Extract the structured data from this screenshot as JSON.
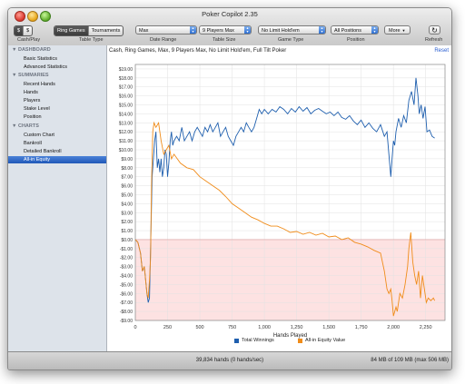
{
  "window": {
    "title": "Poker Copilot 2.35"
  },
  "toolbar": {
    "currency_buttons": [
      "$",
      "$"
    ],
    "game_tabs": [
      {
        "label": "Ring Games",
        "selected": true
      },
      {
        "label": "Tournaments",
        "selected": false
      }
    ],
    "date_range": "Max",
    "table_size": "9 Players Max",
    "game_type": "No Limit Hold'em",
    "position": "All Positions",
    "more": "More",
    "refresh_icon": "refresh-icon",
    "labels": {
      "cash_play": "Cash/Play",
      "table_type": "Table Type",
      "date_range": "Date Range",
      "table_size": "Table Size",
      "game_type": "Game Type",
      "position": "Position",
      "refresh": "Refresh"
    }
  },
  "sidebar": {
    "sections": [
      {
        "title": "DASHBOARD",
        "items": [
          "Basic Statistics",
          "Advanced Statistics"
        ]
      },
      {
        "title": "SUMMARIES",
        "items": [
          "Recent Hands",
          "Hands",
          "Players",
          "Stake Level",
          "Position"
        ]
      },
      {
        "title": "CHARTS",
        "items": [
          "Custom Chart",
          "Bankroll",
          "Detailed Bankroll",
          "All-in Equity"
        ]
      }
    ],
    "selected": "All-in Equity"
  },
  "main": {
    "heading": "Cash, Ring Games, Max, 9 Players Max, No Limit Hold'em, Full Tilt Poker",
    "reset": "Reset"
  },
  "chart_data": {
    "type": "line",
    "xlabel": "Hands Played",
    "ylabel": "",
    "xlim": [
      0,
      2400
    ],
    "ylim": [
      -9,
      19.5
    ],
    "x_ticks": [
      0,
      250,
      500,
      750,
      1000,
      1250,
      1500,
      1750,
      2000,
      2250
    ],
    "x_tick_labels": [
      "0",
      "250",
      "500",
      "750",
      "1,000",
      "1,250",
      "1,500",
      "1,750",
      "2,000",
      "2,250"
    ],
    "y_ticks": [
      19,
      18,
      17,
      16,
      15,
      14,
      13,
      12,
      11,
      10,
      9,
      8,
      7,
      6,
      5,
      4,
      3,
      2,
      1,
      0,
      -1,
      -2,
      -3,
      -4,
      -5,
      -6,
      -7,
      -8,
      -9
    ],
    "y_tick_labels": [
      "$19.00",
      "$18.00",
      "$17.00",
      "$16.00",
      "$15.00",
      "$14.00",
      "$13.00",
      "$12.00",
      "$11.00",
      "$10.00",
      "$9.00",
      "$8.00",
      "$7.00",
      "$6.00",
      "$5.00",
      "$4.00",
      "$3.00",
      "$2.00",
      "$1.00",
      "$0.00",
      "-$1.00",
      "-$2.00",
      "-$3.00",
      "-$4.00",
      "-$5.00",
      "-$6.00",
      "-$7.00",
      "-$8.00",
      "-$9.00"
    ],
    "negative_region_color": "#fde2e2",
    "series": [
      {
        "name": "Total Winnings",
        "color": "#1f5fae",
        "x": [
          0,
          20,
          40,
          55,
          70,
          90,
          100,
          110,
          120,
          130,
          140,
          150,
          160,
          170,
          180,
          190,
          200,
          210,
          220,
          230,
          240,
          250,
          260,
          270,
          280,
          290,
          300,
          320,
          340,
          360,
          380,
          400,
          420,
          440,
          460,
          480,
          500,
          520,
          540,
          560,
          580,
          600,
          620,
          640,
          660,
          680,
          700,
          720,
          740,
          760,
          780,
          800,
          820,
          840,
          860,
          880,
          900,
          920,
          940,
          960,
          980,
          1000,
          1030,
          1060,
          1090,
          1120,
          1150,
          1180,
          1210,
          1240,
          1270,
          1300,
          1330,
          1360,
          1390,
          1420,
          1450,
          1480,
          1510,
          1540,
          1570,
          1600,
          1630,
          1660,
          1690,
          1720,
          1750,
          1780,
          1810,
          1840,
          1870,
          1900,
          1930,
          1950,
          1965,
          1980,
          1990,
          2000,
          2010,
          2020,
          2040,
          2060,
          2080,
          2100,
          2120,
          2140,
          2160,
          2175,
          2190,
          2200,
          2215,
          2230,
          2245,
          2260,
          2280,
          2300,
          2320
        ],
        "y": [
          0,
          -0.3,
          -1.5,
          -3.5,
          -3.0,
          -6.0,
          -7.0,
          -6.5,
          0.0,
          7.0,
          9.0,
          11.0,
          12.0,
          8.0,
          9.0,
          7.5,
          9.0,
          7.0,
          8.0,
          10.0,
          9.5,
          7.0,
          8.5,
          11.0,
          12.0,
          10.5,
          11.0,
          11.5,
          11.0,
          12.5,
          11.0,
          11.5,
          12.0,
          11.0,
          12.0,
          12.5,
          12.0,
          11.5,
          12.5,
          12.0,
          12.8,
          12.0,
          12.5,
          13.0,
          11.5,
          12.0,
          12.5,
          11.5,
          11.0,
          10.5,
          11.5,
          12.0,
          12.5,
          12.0,
          13.0,
          12.5,
          12.0,
          12.5,
          13.5,
          14.5,
          14.0,
          14.5,
          14.0,
          14.5,
          14.2,
          14.8,
          14.5,
          14.0,
          14.6,
          14.2,
          14.8,
          14.3,
          14.7,
          14.0,
          14.4,
          14.6,
          14.3,
          14.0,
          14.2,
          13.8,
          14.2,
          13.6,
          13.4,
          13.8,
          13.2,
          12.8,
          13.3,
          12.5,
          13.0,
          12.4,
          12.0,
          12.8,
          11.5,
          12.0,
          9.5,
          7.0,
          9.0,
          11.0,
          10.5,
          12.0,
          13.5,
          12.5,
          13.8,
          13.0,
          15.5,
          16.5,
          15.0,
          18.0,
          16.0,
          14.0,
          15.0,
          13.5,
          14.8,
          12.0,
          12.2,
          11.5,
          11.3
        ],
        "label": "Total Winnings"
      },
      {
        "name": "All-in Equity Value",
        "color": "#f08c1a",
        "x": [
          0,
          20,
          40,
          55,
          70,
          90,
          100,
          110,
          118,
          125,
          135,
          145,
          160,
          180,
          200,
          220,
          240,
          260,
          280,
          300,
          350,
          400,
          450,
          500,
          550,
          600,
          650,
          700,
          750,
          800,
          850,
          900,
          950,
          1000,
          1050,
          1100,
          1150,
          1200,
          1250,
          1300,
          1350,
          1400,
          1450,
          1500,
          1550,
          1600,
          1650,
          1700,
          1750,
          1800,
          1850,
          1900,
          1930,
          1950,
          1965,
          1980,
          1990,
          2000,
          2010,
          2020,
          2030,
          2050,
          2070,
          2090,
          2110,
          2120,
          2135,
          2150,
          2165,
          2180,
          2195,
          2210,
          2225,
          2240,
          2255,
          2270,
          2290,
          2310,
          2320
        ],
        "y": [
          0,
          -0.3,
          -1.5,
          -3.5,
          -3.0,
          -6.0,
          -6.5,
          -4.5,
          -2.0,
          6.0,
          12.0,
          13.0,
          12.5,
          13.0,
          11.0,
          9.5,
          10.0,
          10.5,
          9.0,
          9.5,
          8.5,
          8.0,
          7.8,
          7.0,
          6.5,
          6.0,
          5.5,
          4.8,
          4.0,
          3.5,
          3.0,
          2.5,
          2.2,
          1.8,
          1.5,
          1.5,
          1.2,
          0.8,
          0.9,
          0.6,
          0.8,
          0.5,
          0.7,
          0.3,
          0.4,
          0.0,
          0.2,
          -0.3,
          -0.5,
          -0.8,
          -1.2,
          -1.5,
          -3.5,
          -5.5,
          -6.0,
          -5.5,
          -6.8,
          -8.5,
          -8.0,
          -7.5,
          -8.0,
          -6.0,
          -6.5,
          -5.0,
          -3.0,
          -1.0,
          0.8,
          -2.5,
          -4.0,
          -5.0,
          -3.5,
          -6.5,
          -4.0,
          -5.5,
          -7.0,
          -6.5,
          -6.8,
          -6.5,
          -6.8
        ],
        "label": "All-in Equity Value"
      }
    ],
    "legend_position": "bottom"
  },
  "status": {
    "hands": "39,834 hands (0 hands/sec)",
    "memory": "84 MB of 109 MB (max 506 MB)"
  }
}
